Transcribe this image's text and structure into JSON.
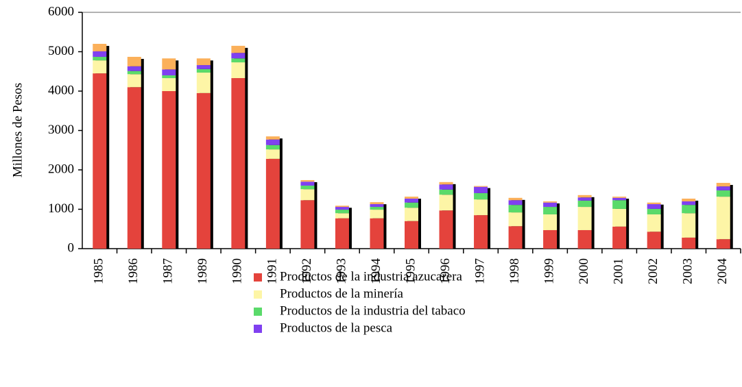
{
  "chart_data": {
    "type": "stacked-bar",
    "y_label": "Millones de Pesos",
    "categories": [
      "1985",
      "1986",
      "1987",
      "1989",
      "1990",
      "1991",
      "1992",
      "1993",
      "1994",
      "1995",
      "1996",
      "1997",
      "1998",
      "1999",
      "2000",
      "2001",
      "2002",
      "2003",
      "2004"
    ],
    "series": [
      {
        "name": "Productos de la industria azucarera",
        "color": "#e4433c",
        "values": [
          4450,
          4100,
          4000,
          3950,
          4330,
          2280,
          1230,
          770,
          770,
          700,
          970,
          850,
          570,
          470,
          470,
          560,
          430,
          280,
          240
        ]
      },
      {
        "name": "Productos de la minería",
        "color": "#fdf5a6",
        "values": [
          330,
          330,
          330,
          520,
          400,
          240,
          280,
          130,
          220,
          340,
          400,
          400,
          350,
          400,
          590,
          450,
          440,
          620,
          1080
        ]
      },
      {
        "name": "Productos de la industria del tabaco",
        "color": "#5ada6a",
        "values": [
          90,
          80,
          70,
          90,
          100,
          110,
          90,
          90,
          70,
          130,
          130,
          160,
          190,
          190,
          160,
          220,
          140,
          210,
          160
        ]
      },
      {
        "name": "Productos de la pesca",
        "color": "#8040f0",
        "values": [
          140,
          120,
          150,
          100,
          140,
          140,
          100,
          70,
          70,
          100,
          130,
          160,
          120,
          110,
          80,
          60,
          120,
          90,
          100
        ]
      },
      {
        "color": "#fbb05a",
        "values": [
          190,
          240,
          280,
          170,
          180,
          80,
          40,
          30,
          50,
          50,
          60,
          20,
          60,
          30,
          60,
          30,
          40,
          70,
          90
        ]
      }
    ],
    "ylim": [
      0,
      6000
    ],
    "yticks": [
      0,
      1000,
      2000,
      3000,
      4000,
      5000,
      6000
    ]
  }
}
